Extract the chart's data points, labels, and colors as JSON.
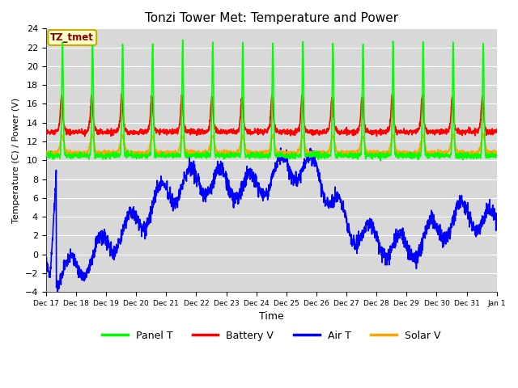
{
  "title": "Tonzi Tower Met: Temperature and Power",
  "xlabel": "Time",
  "ylabel": "Temperature (C) / Power (V)",
  "ylim": [
    -4,
    24
  ],
  "yticks": [
    -4,
    -2,
    0,
    2,
    4,
    6,
    8,
    10,
    12,
    14,
    16,
    18,
    20,
    22,
    24
  ],
  "bg_color": "#d8d8d8",
  "fig_color": "#ffffff",
  "grid_color": "#ffffff",
  "annotation_text": "TZ_tmet",
  "annotation_bg": "#ffffcc",
  "annotation_border": "#ccaa00",
  "annotation_text_color": "#880000",
  "legend_labels": [
    "Panel T",
    "Battery V",
    "Air T",
    "Solar V"
  ],
  "legend_colors": [
    "#00ff00",
    "#ff0000",
    "#0000ff",
    "#ffa500"
  ],
  "line_width": 1.2,
  "n_days": 15,
  "pts_per_day": 144
}
